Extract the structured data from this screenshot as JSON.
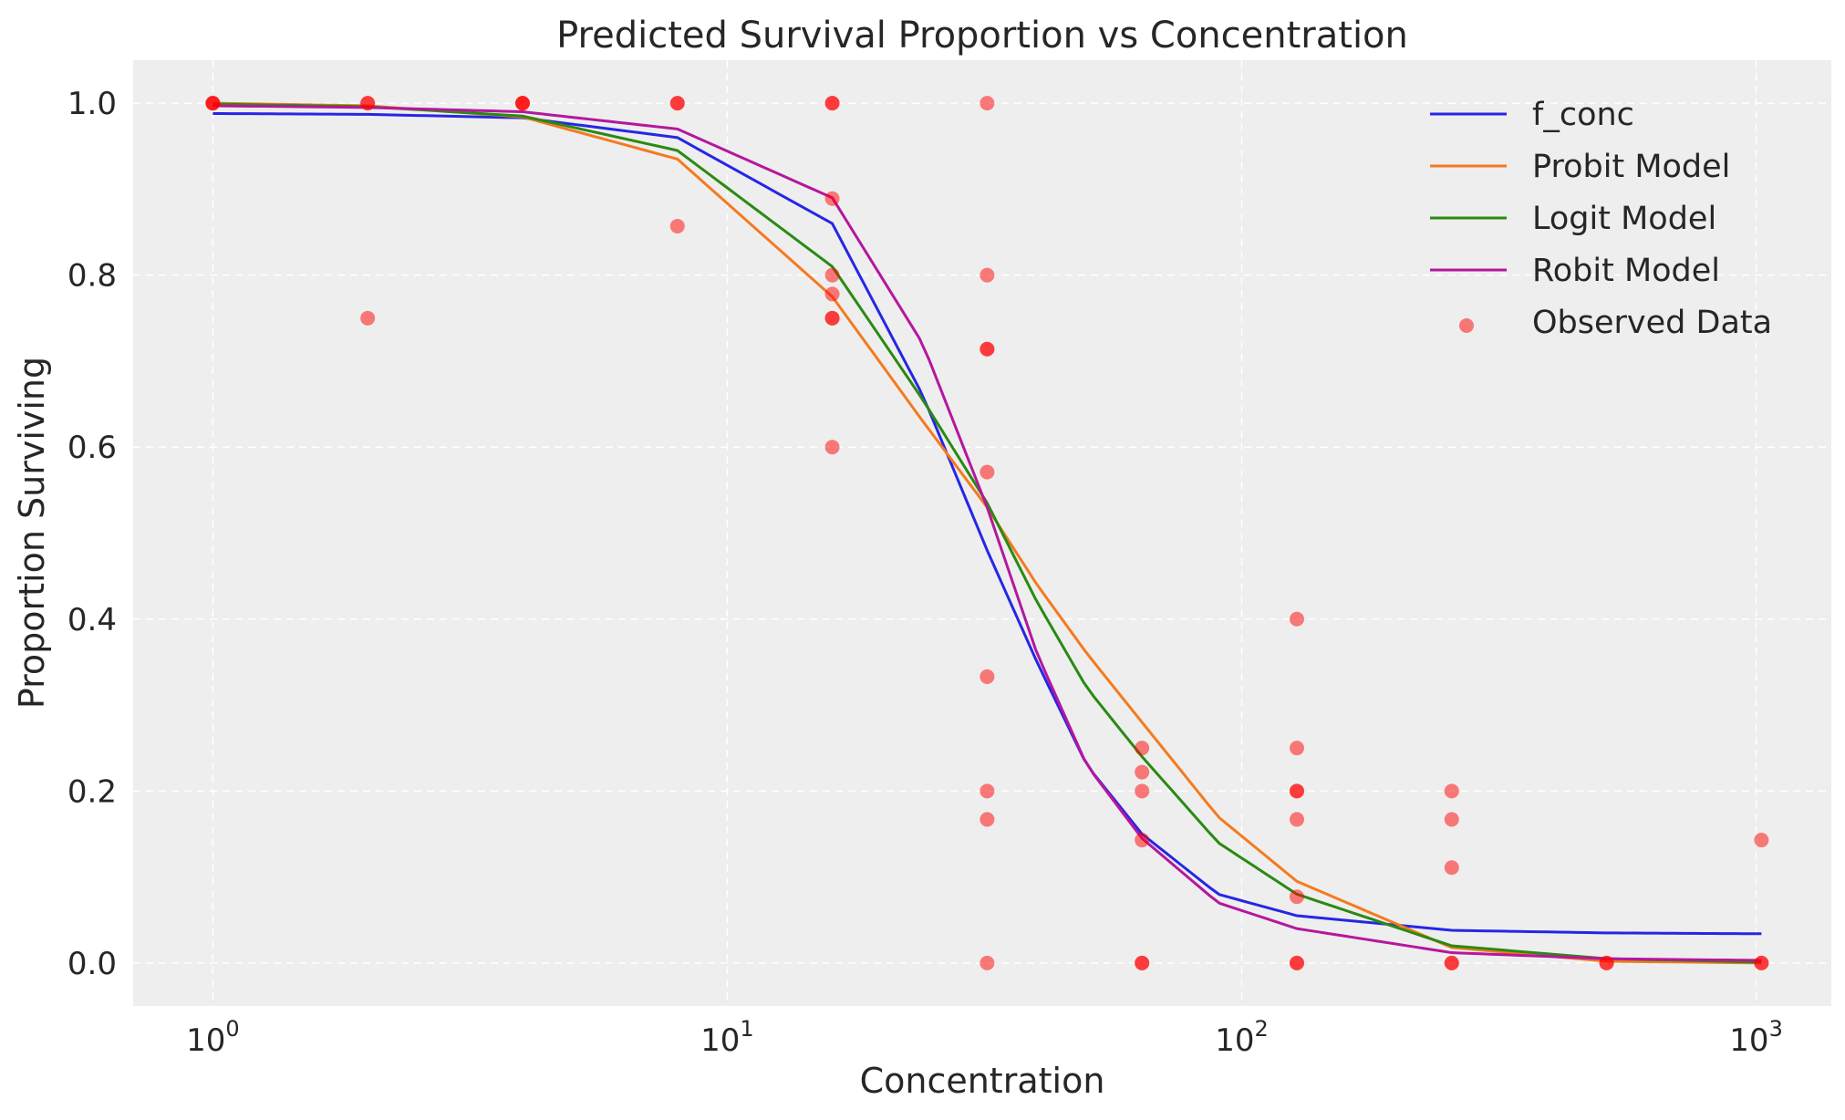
{
  "chart_data": {
    "type": "line",
    "title": "Predicted Survival Proportion vs Concentration",
    "xlabel": "Concentration",
    "ylabel": "Proportion Surviving",
    "xscale": "log",
    "xlim": [
      0.7,
      1400
    ],
    "ylim": [
      -0.05,
      1.05
    ],
    "grid": true,
    "legend_position": "top-right",
    "x_ticks": [
      {
        "value": 1,
        "base": "10",
        "exp": "0"
      },
      {
        "value": 10,
        "base": "10",
        "exp": "1"
      },
      {
        "value": 100,
        "base": "10",
        "exp": "2"
      },
      {
        "value": 1000,
        "base": "10",
        "exp": "3"
      }
    ],
    "y_ticks": [
      {
        "value": 0.0,
        "label": "0.0"
      },
      {
        "value": 0.2,
        "label": "0.2"
      },
      {
        "value": 0.4,
        "label": "0.4"
      },
      {
        "value": 0.6,
        "label": "0.6"
      },
      {
        "value": 0.8,
        "label": "0.8"
      },
      {
        "value": 1.0,
        "label": "1.0"
      }
    ],
    "x": [
      1,
      2,
      4,
      8,
      16,
      24,
      32,
      40,
      50,
      64,
      90,
      128,
      256,
      512,
      1024
    ],
    "series": [
      {
        "name": "f_conc",
        "color": "#2626e6",
        "values": [
          0.988,
          0.987,
          0.983,
          0.96,
          0.86,
          0.66,
          0.48,
          0.35,
          0.23,
          0.15,
          0.08,
          0.055,
          0.038,
          0.035,
          0.034
        ]
      },
      {
        "name": "Probit Model",
        "color": "#f47a1f",
        "values": [
          1.0,
          0.997,
          0.984,
          0.935,
          0.775,
          0.63,
          0.53,
          0.44,
          0.36,
          0.28,
          0.17,
          0.095,
          0.018,
          0.002,
          0.0
        ]
      },
      {
        "name": "Logit Model",
        "color": "#2a8a12",
        "values": [
          0.999,
          0.996,
          0.985,
          0.945,
          0.81,
          0.655,
          0.535,
          0.42,
          0.32,
          0.24,
          0.14,
          0.08,
          0.02,
          0.005,
          0.001
        ]
      },
      {
        "name": "Robit Model",
        "color": "#b5179e",
        "values": [
          0.997,
          0.995,
          0.99,
          0.97,
          0.89,
          0.72,
          0.53,
          0.36,
          0.23,
          0.145,
          0.07,
          0.04,
          0.012,
          0.005,
          0.003
        ]
      }
    ],
    "scatter": {
      "name": "Observed Data",
      "color": "#ff0000",
      "points": [
        [
          1,
          1.0
        ],
        [
          1,
          1.0
        ],
        [
          1,
          1.0
        ],
        [
          2,
          1.0
        ],
        [
          2,
          1.0
        ],
        [
          2,
          0.75
        ],
        [
          4,
          1.0
        ],
        [
          4,
          1.0
        ],
        [
          4,
          1.0
        ],
        [
          8,
          1.0
        ],
        [
          8,
          1.0
        ],
        [
          8,
          0.857
        ],
        [
          16,
          1.0
        ],
        [
          16,
          1.0
        ],
        [
          16,
          0.889
        ],
        [
          16,
          0.8
        ],
        [
          16,
          0.778
        ],
        [
          16,
          0.75
        ],
        [
          16,
          0.75
        ],
        [
          16,
          0.6
        ],
        [
          32,
          1.0
        ],
        [
          32,
          0.8
        ],
        [
          32,
          0.714
        ],
        [
          32,
          0.714
        ],
        [
          32,
          0.571
        ],
        [
          32,
          0.333
        ],
        [
          32,
          0.2
        ],
        [
          32,
          0.167
        ],
        [
          32,
          0.0
        ],
        [
          64,
          0.25
        ],
        [
          64,
          0.222
        ],
        [
          64,
          0.2
        ],
        [
          64,
          0.143
        ],
        [
          64,
          0.0
        ],
        [
          64,
          0.0
        ],
        [
          128,
          0.4
        ],
        [
          128,
          0.25
        ],
        [
          128,
          0.2
        ],
        [
          128,
          0.2
        ],
        [
          128,
          0.167
        ],
        [
          128,
          0.077
        ],
        [
          128,
          0.0
        ],
        [
          128,
          0.0
        ],
        [
          256,
          0.2
        ],
        [
          256,
          0.167
        ],
        [
          256,
          0.111
        ],
        [
          256,
          0.0
        ],
        [
          256,
          0.0
        ],
        [
          512,
          0.0
        ],
        [
          512,
          0.0
        ],
        [
          1024,
          0.143
        ],
        [
          1024,
          0.0
        ],
        [
          1024,
          0.0
        ]
      ]
    }
  }
}
